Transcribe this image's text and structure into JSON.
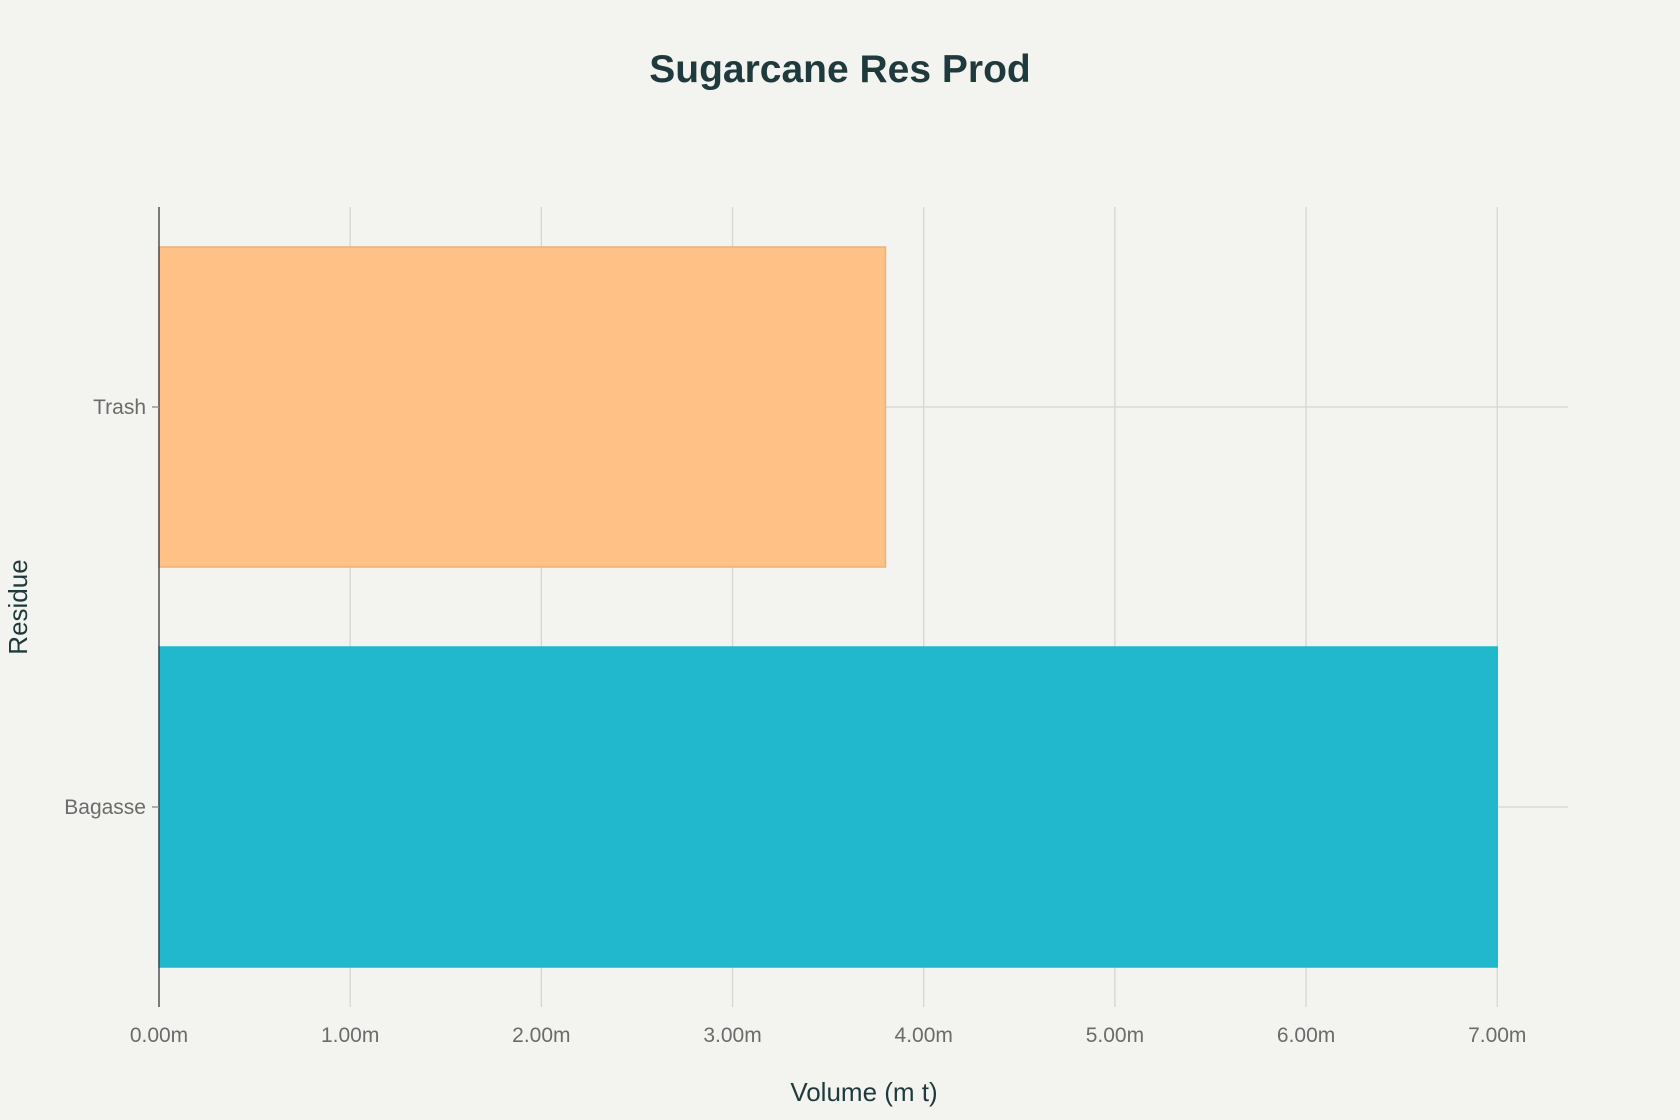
{
  "chart_data": {
    "type": "bar",
    "orientation": "horizontal",
    "title": "Sugarcane Res Prod",
    "xlabel": "Volume (m t)",
    "ylabel": "Residue",
    "categories": [
      "Bagasse",
      "Trash"
    ],
    "values": [
      7000000,
      3800000
    ],
    "colors": [
      "#21b7cc",
      "#ffc185"
    ],
    "xlim": [
      0,
      7370000
    ],
    "x_ticks": [
      0,
      1000000,
      2000000,
      3000000,
      4000000,
      5000000,
      6000000,
      7000000
    ],
    "x_tick_labels": [
      "0.00m",
      "1.00m",
      "2.00m",
      "3.00m",
      "4.00m",
      "5.00m",
      "6.00m",
      "7.00m"
    ],
    "grid": true,
    "legend": "none"
  }
}
